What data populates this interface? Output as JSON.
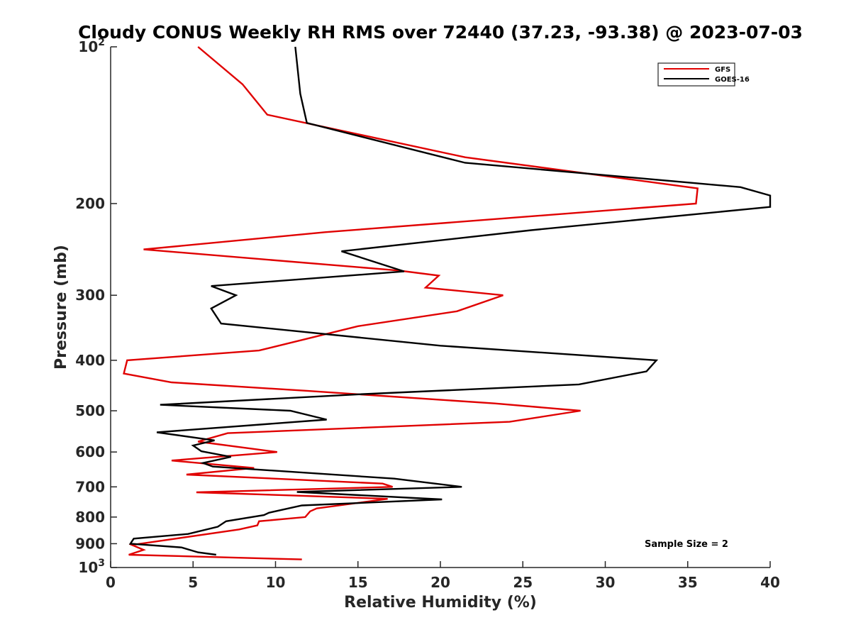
{
  "chart_data": {
    "type": "line",
    "title": "Cloudy CONUS Weekly RH RMS over 72440 (37.23, -93.38) @ 2023-07-03",
    "xlabel": "Relative Humidity (%)",
    "ylabel": "Pressure (mb)",
    "xlim": [
      0,
      40
    ],
    "ylim": [
      100,
      1000
    ],
    "y_scale": "log",
    "y_reversed": true,
    "grid": false,
    "legend_position": "top-right",
    "x_ticks": [
      "0",
      "5",
      "10",
      "15",
      "20",
      "25",
      "30",
      "35",
      "40"
    ],
    "y_ticks": [
      {
        "value": 100,
        "base": "10",
        "exp": "2"
      },
      {
        "value": 200,
        "label": "200"
      },
      {
        "value": 300,
        "label": "300"
      },
      {
        "value": 400,
        "label": "400"
      },
      {
        "value": 500,
        "label": "500"
      },
      {
        "value": 600,
        "label": "600"
      },
      {
        "value": 700,
        "label": "700"
      },
      {
        "value": 800,
        "label": "800"
      },
      {
        "value": 900,
        "label": "900"
      },
      {
        "value": 1000,
        "base": "10",
        "exp": "3"
      }
    ],
    "annotation": "Sample Size = 2",
    "series": [
      {
        "name": "GFS",
        "color": "#e00000",
        "points": [
          [
            5.3,
            100
          ],
          [
            8.0,
            118
          ],
          [
            9.5,
            135
          ],
          [
            21.5,
            163
          ],
          [
            35.6,
            187
          ],
          [
            35.5,
            200
          ],
          [
            13.0,
            227
          ],
          [
            2.0,
            245
          ],
          [
            17.5,
            269
          ],
          [
            19.9,
            275
          ],
          [
            19.1,
            290
          ],
          [
            23.8,
            300
          ],
          [
            21.0,
            322
          ],
          [
            15.0,
            344
          ],
          [
            9.0,
            383
          ],
          [
            1.0,
            400
          ],
          [
            0.8,
            424
          ],
          [
            3.7,
            441
          ],
          [
            12.0,
            458
          ],
          [
            23.3,
            484
          ],
          [
            28.5,
            500
          ],
          [
            24.2,
            525
          ],
          [
            7.1,
            552
          ],
          [
            5.3,
            573
          ],
          [
            10.1,
            600
          ],
          [
            3.7,
            623
          ],
          [
            8.7,
            644
          ],
          [
            4.6,
            663
          ],
          [
            16.5,
            690
          ],
          [
            17.1,
            700
          ],
          [
            5.2,
            717
          ],
          [
            11.0,
            727
          ],
          [
            16.8,
            738
          ],
          [
            12.5,
            770
          ],
          [
            12.1,
            780
          ],
          [
            11.8,
            800
          ],
          [
            9.0,
            815
          ],
          [
            8.9,
            830
          ],
          [
            7.8,
            845
          ],
          [
            1.3,
            905
          ],
          [
            2.0,
            925
          ],
          [
            1.1,
            945
          ],
          [
            11.6,
            965
          ]
        ]
      },
      {
        "name": "GOES-16",
        "color": "#000000",
        "points": [
          [
            11.2,
            100
          ],
          [
            11.5,
            123
          ],
          [
            11.9,
            140
          ],
          [
            21.5,
            167
          ],
          [
            38.2,
            186
          ],
          [
            40.0,
            193
          ],
          [
            40.0,
            203
          ],
          [
            25.5,
            225
          ],
          [
            14.0,
            247
          ],
          [
            17.8,
            270
          ],
          [
            6.1,
            288
          ],
          [
            7.6,
            300
          ],
          [
            6.1,
            318
          ],
          [
            6.7,
            340
          ],
          [
            20.0,
            375
          ],
          [
            33.1,
            400
          ],
          [
            32.5,
            420
          ],
          [
            28.4,
            445
          ],
          [
            15.0,
            465
          ],
          [
            3.0,
            487
          ],
          [
            10.9,
            500
          ],
          [
            13.1,
            520
          ],
          [
            2.8,
            550
          ],
          [
            6.3,
            570
          ],
          [
            5.0,
            583
          ],
          [
            5.5,
            598
          ],
          [
            7.3,
            613
          ],
          [
            5.6,
            630
          ],
          [
            6.2,
            640
          ],
          [
            17.2,
            675
          ],
          [
            21.3,
            700
          ],
          [
            11.3,
            716
          ],
          [
            20.1,
            740
          ],
          [
            11.6,
            760
          ],
          [
            9.6,
            785
          ],
          [
            9.3,
            793
          ],
          [
            7.0,
            815
          ],
          [
            6.5,
            835
          ],
          [
            4.7,
            862
          ],
          [
            1.4,
            880
          ],
          [
            1.2,
            900
          ],
          [
            4.3,
            915
          ],
          [
            5.3,
            935
          ],
          [
            6.4,
            945
          ]
        ]
      }
    ]
  }
}
